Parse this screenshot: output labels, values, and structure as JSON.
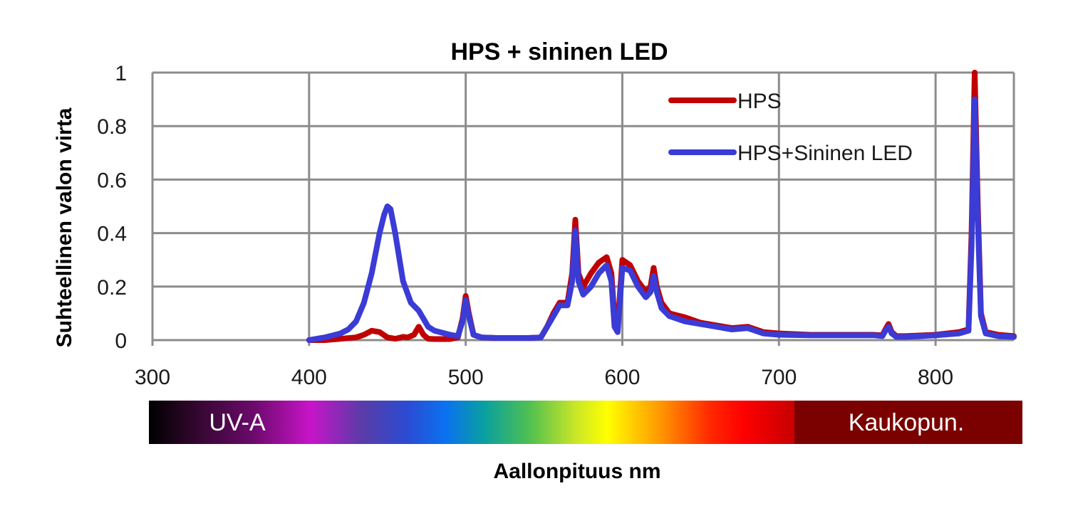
{
  "chart_data": {
    "type": "line",
    "title": "HPS + sininen LED",
    "xlabel": "Aallonpituus nm",
    "ylabel": "Suhteellinen valon virta",
    "xlim": [
      300,
      850
    ],
    "ylim": [
      0,
      1
    ],
    "x_ticks": [
      "300",
      "400",
      "500",
      "600",
      "700",
      "800"
    ],
    "y_ticks": [
      "0",
      "0.2",
      "0.4",
      "0.6",
      "0.8",
      "1"
    ],
    "x_tick_values": [
      300,
      400,
      500,
      600,
      700,
      800
    ],
    "y_tick_values": [
      0,
      0.2,
      0.4,
      0.6,
      0.8,
      1
    ],
    "grid": true,
    "legend_position": "top-right",
    "series": [
      {
        "name": "HPS",
        "color": "#c00000",
        "x": [
          400,
          410,
          420,
          430,
          435,
          440,
          445,
          450,
          455,
          460,
          463,
          467,
          470,
          473,
          476,
          480,
          490,
          495,
          498,
          500,
          502,
          505,
          510,
          520,
          530,
          540,
          548,
          552,
          556,
          560,
          565,
          568,
          570,
          572,
          575,
          580,
          585,
          590,
          593,
          595,
          597,
          600,
          605,
          610,
          615,
          618,
          620,
          622,
          625,
          630,
          640,
          650,
          660,
          670,
          680,
          690,
          700,
          720,
          740,
          760,
          766,
          768,
          770,
          772,
          775,
          780,
          800,
          815,
          821,
          823,
          825,
          827,
          829,
          832,
          840,
          850
        ],
        "y": [
          0,
          0,
          0.005,
          0.01,
          0.02,
          0.035,
          0.03,
          0.01,
          0.005,
          0.012,
          0.01,
          0.02,
          0.05,
          0.02,
          0.005,
          0.004,
          0.004,
          0.01,
          0.08,
          0.165,
          0.1,
          0.02,
          0.01,
          0.008,
          0.008,
          0.008,
          0.01,
          0.05,
          0.1,
          0.14,
          0.14,
          0.25,
          0.45,
          0.25,
          0.2,
          0.25,
          0.29,
          0.31,
          0.25,
          0.08,
          0.05,
          0.3,
          0.28,
          0.22,
          0.18,
          0.2,
          0.27,
          0.2,
          0.14,
          0.1,
          0.085,
          0.065,
          0.055,
          0.045,
          0.05,
          0.03,
          0.025,
          0.02,
          0.02,
          0.02,
          0.018,
          0.04,
          0.06,
          0.03,
          0.015,
          0.015,
          0.02,
          0.03,
          0.04,
          0.4,
          1.0,
          0.5,
          0.1,
          0.03,
          0.02,
          0.015
        ]
      },
      {
        "name": "HPS+Sininen LED",
        "color": "#3b3bd6",
        "x": [
          400,
          410,
          420,
          425,
          430,
          435,
          440,
          445,
          448,
          450,
          452,
          455,
          460,
          465,
          470,
          473,
          476,
          480,
          490,
          495,
          498,
          500,
          502,
          505,
          510,
          520,
          530,
          540,
          548,
          552,
          556,
          560,
          565,
          568,
          570,
          572,
          575,
          580,
          585,
          590,
          593,
          595,
          597,
          600,
          605,
          610,
          615,
          618,
          620,
          622,
          625,
          630,
          640,
          650,
          660,
          670,
          680,
          690,
          700,
          720,
          740,
          760,
          766,
          768,
          770,
          772,
          775,
          780,
          800,
          815,
          821,
          823,
          825,
          827,
          829,
          832,
          840,
          850
        ],
        "y": [
          0,
          0.01,
          0.025,
          0.04,
          0.07,
          0.14,
          0.25,
          0.4,
          0.47,
          0.5,
          0.49,
          0.4,
          0.22,
          0.14,
          0.11,
          0.08,
          0.05,
          0.035,
          0.02,
          0.015,
          0.07,
          0.15,
          0.09,
          0.02,
          0.01,
          0.008,
          0.008,
          0.008,
          0.01,
          0.05,
          0.09,
          0.13,
          0.13,
          0.22,
          0.41,
          0.22,
          0.17,
          0.2,
          0.25,
          0.28,
          0.22,
          0.05,
          0.03,
          0.27,
          0.26,
          0.2,
          0.16,
          0.18,
          0.24,
          0.18,
          0.12,
          0.09,
          0.07,
          0.06,
          0.05,
          0.04,
          0.045,
          0.025,
          0.02,
          0.018,
          0.018,
          0.018,
          0.015,
          0.035,
          0.05,
          0.025,
          0.012,
          0.012,
          0.018,
          0.025,
          0.035,
          0.35,
          0.9,
          0.45,
          0.09,
          0.025,
          0.015,
          0.012
        ]
      }
    ],
    "spectrum_band": {
      "uv_label": "UV-A",
      "far_red_label": "Kaukopun."
    }
  }
}
